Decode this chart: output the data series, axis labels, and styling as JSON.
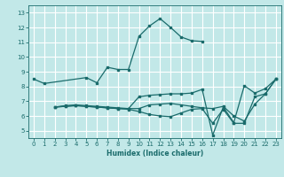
{
  "xlabel": "Humidex (Indice chaleur)",
  "bg_color": "#c2e8e8",
  "grid_color": "#ffffff",
  "line_color": "#1a6b6b",
  "xlim": [
    -0.5,
    23.5
  ],
  "ylim": [
    4.5,
    13.5
  ],
  "xticks": [
    0,
    1,
    2,
    3,
    4,
    5,
    6,
    7,
    8,
    9,
    10,
    11,
    12,
    13,
    14,
    15,
    16,
    17,
    18,
    19,
    20,
    21,
    22,
    23
  ],
  "yticks": [
    5,
    6,
    7,
    8,
    9,
    10,
    11,
    12,
    13
  ],
  "line1_x": [
    0,
    1,
    5,
    6,
    7,
    8,
    9,
    10,
    11,
    12,
    13,
    14,
    15,
    16
  ],
  "line1_y": [
    8.5,
    8.2,
    8.6,
    8.25,
    9.3,
    9.15,
    9.15,
    11.4,
    12.1,
    12.6,
    12.0,
    11.35,
    11.1,
    11.05
  ],
  "line2_x": [
    2,
    3,
    4,
    5,
    6,
    7,
    8,
    9,
    10,
    11,
    12,
    13,
    14,
    15,
    16,
    17,
    18,
    19,
    20,
    21,
    22,
    23
  ],
  "line2_y": [
    6.6,
    6.7,
    6.75,
    6.7,
    6.65,
    6.6,
    6.55,
    6.5,
    7.3,
    7.4,
    7.45,
    7.5,
    7.5,
    7.55,
    7.8,
    4.7,
    6.6,
    5.55,
    8.05,
    7.55,
    7.85,
    8.5
  ],
  "line3_x": [
    2,
    3,
    4,
    5,
    6,
    7,
    8,
    9,
    10,
    11,
    12,
    13,
    14,
    15,
    16,
    17,
    18,
    19,
    20,
    21,
    22,
    23
  ],
  "line3_y": [
    6.6,
    6.65,
    6.7,
    6.65,
    6.6,
    6.55,
    6.5,
    6.5,
    6.5,
    6.75,
    6.8,
    6.85,
    6.75,
    6.65,
    6.55,
    6.5,
    6.65,
    6.0,
    5.65,
    6.8,
    7.5,
    8.5
  ],
  "line4_x": [
    2,
    3,
    4,
    5,
    6,
    7,
    8,
    9,
    10,
    11,
    12,
    13,
    14,
    15,
    16,
    17,
    18,
    19,
    20,
    21,
    22,
    23
  ],
  "line4_y": [
    6.6,
    6.65,
    6.7,
    6.65,
    6.6,
    6.55,
    6.5,
    6.45,
    6.3,
    6.1,
    6.0,
    5.95,
    6.2,
    6.45,
    6.5,
    5.5,
    6.45,
    5.5,
    5.5,
    7.3,
    7.5,
    8.5
  ]
}
